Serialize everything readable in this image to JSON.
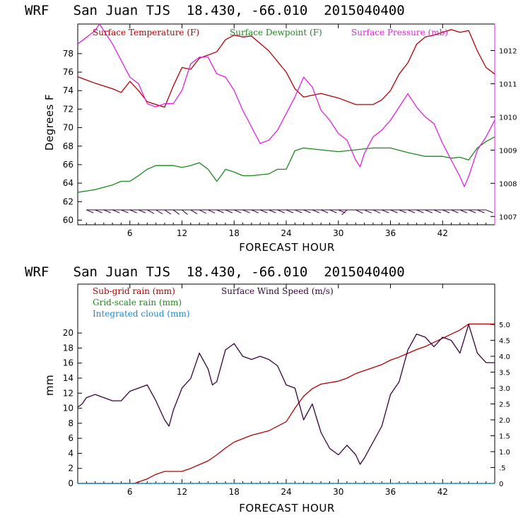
{
  "chart_data": [
    {
      "type": "line",
      "title": "WRF   San Juan TJS  18.430, -66.010  2015040400",
      "xlabel": "FORECAST HOUR",
      "ylabel": "Degrees F",
      "xlim": [
        0,
        48
      ],
      "ylim": [
        59.5,
        81.2
      ],
      "xticks": [
        6,
        12,
        18,
        24,
        30,
        36,
        42
      ],
      "yticks": [
        60,
        62,
        64,
        66,
        68,
        70,
        72,
        74,
        76,
        78
      ],
      "y2lim": [
        1006.75,
        1012.8
      ],
      "y2ticks": [
        1007,
        1008,
        1009,
        1010,
        1011,
        1012
      ],
      "legend_position": "top",
      "series": [
        {
          "name": "Surface Temperature (F)",
          "color": "#b40000",
          "axis": "left",
          "x": [
            0,
            2,
            4,
            5,
            6,
            7,
            8,
            9,
            10,
            11,
            12,
            13,
            14,
            16,
            17,
            18,
            19,
            20,
            22,
            24,
            25,
            26,
            27,
            28,
            30,
            32,
            33,
            34,
            35,
            36,
            37,
            38,
            39,
            40,
            41,
            42,
            43,
            44,
            45,
            46,
            47,
            48
          ],
          "values": [
            75.5,
            74.8,
            74.2,
            73.8,
            75.0,
            74.0,
            72.8,
            72.5,
            72.2,
            74.5,
            76.5,
            76.3,
            77.5,
            78.2,
            79.5,
            80.0,
            79.8,
            79.9,
            78.3,
            76.0,
            74.2,
            73.3,
            73.5,
            73.7,
            73.2,
            72.5,
            72.5,
            72.5,
            73.0,
            74.0,
            75.8,
            77.0,
            79.0,
            79.8,
            80.0,
            80.3,
            80.6,
            80.3,
            80.5,
            78.3,
            76.5,
            75.8
          ]
        },
        {
          "name": "Surface Dewpoint (F)",
          "color": "#1a8a1a",
          "axis": "left",
          "x": [
            0,
            2,
            4,
            5,
            6,
            7,
            8,
            9,
            10,
            11,
            12,
            13,
            14,
            15,
            16,
            16.5,
            17,
            18,
            19,
            20,
            22,
            23,
            24,
            25,
            26,
            28,
            30,
            32,
            34,
            36,
            38,
            40,
            42,
            43,
            44,
            45,
            46,
            47,
            48
          ],
          "values": [
            63.0,
            63.3,
            63.8,
            64.2,
            64.2,
            64.8,
            65.5,
            65.9,
            65.9,
            65.9,
            65.7,
            65.9,
            66.2,
            65.5,
            64.2,
            64.8,
            65.5,
            65.2,
            64.8,
            64.8,
            65.0,
            65.5,
            65.5,
            67.5,
            67.8,
            67.6,
            67.4,
            67.6,
            67.8,
            67.8,
            67.3,
            66.9,
            66.9,
            66.7,
            66.8,
            66.5,
            67.8,
            68.5,
            69.0
          ]
        },
        {
          "name": "Surface Pressure (mb)",
          "color": "#e020e0",
          "axis": "right",
          "x": [
            0,
            1,
            2,
            2.5,
            3,
            4,
            5,
            6,
            7,
            8,
            9,
            10,
            11,
            12,
            13,
            14,
            15,
            16,
            17,
            18,
            19,
            20,
            21,
            22,
            23,
            24,
            25,
            26,
            27,
            28,
            29,
            30,
            31,
            32,
            32.5,
            33,
            34,
            35,
            36,
            37,
            38,
            39,
            40,
            41,
            42,
            43,
            44,
            44.5,
            45,
            46,
            47,
            48
          ],
          "values": [
            1012.2,
            1012.4,
            1012.6,
            1012.8,
            1012.6,
            1012.2,
            1011.7,
            1011.2,
            1011.0,
            1010.4,
            1010.3,
            1010.4,
            1010.4,
            1010.8,
            1011.6,
            1011.8,
            1011.8,
            1011.3,
            1011.2,
            1010.8,
            1010.2,
            1009.7,
            1009.2,
            1009.3,
            1009.6,
            1010.1,
            1010.6,
            1011.2,
            1010.9,
            1010.2,
            1009.9,
            1009.5,
            1009.3,
            1008.7,
            1008.5,
            1008.9,
            1009.4,
            1009.6,
            1009.9,
            1010.3,
            1010.7,
            1010.3,
            1010.0,
            1009.8,
            1009.2,
            1008.7,
            1008.2,
            1007.9,
            1008.2,
            1009.0,
            1009.4,
            1009.9
          ]
        }
      ],
      "wind_barbs": {
        "level": 61.1,
        "color": "#3a0040",
        "hours": [
          1,
          2,
          3,
          4,
          5,
          6,
          7,
          8,
          9,
          10,
          11,
          12,
          13,
          14,
          15,
          16,
          17,
          18,
          19,
          20,
          21,
          22,
          23,
          24,
          25,
          26,
          27,
          28,
          29,
          30,
          31,
          32,
          33,
          34,
          35,
          36,
          37,
          38,
          39,
          40,
          41,
          42,
          43,
          44,
          45,
          46,
          47
        ],
        "direction_deg": [
          90,
          90,
          90,
          90,
          90,
          90,
          90,
          105,
          110,
          115,
          120,
          125,
          110,
          100,
          95,
          90,
          90,
          90,
          90,
          90,
          90,
          90,
          90,
          90,
          90,
          90,
          90,
          90,
          90,
          90,
          230,
          100,
          95,
          95,
          90,
          90,
          90,
          90,
          90,
          90,
          90,
          90,
          90,
          90,
          90,
          90,
          90
        ]
      }
    },
    {
      "type": "line",
      "title": "WRF   San Juan TJS  18.430, -66.010  2015040400",
      "xlabel": "FORECAST HOUR",
      "ylabel": "mm",
      "xlim": [
        0,
        48
      ],
      "ylim": [
        0,
        26.5
      ],
      "xticks": [
        6,
        12,
        18,
        24,
        30,
        36,
        42
      ],
      "yticks": [
        0,
        2,
        4,
        6,
        8,
        10,
        12,
        14,
        16,
        18,
        20
      ],
      "y2lim": [
        0,
        6.27
      ],
      "y2ticks": [
        0,
        0.5,
        1.0,
        1.5,
        2.0,
        2.5,
        3.0,
        3.5,
        4.0,
        4.5,
        5.0
      ],
      "y2tick_labels": [
        "0",
        ".5",
        "1.0",
        "1.5",
        "2.0",
        "2.5",
        "3.0",
        "3.5",
        "4.0",
        "4.5",
        "5.0"
      ],
      "legend_position": "top-left",
      "series": [
        {
          "name": "Sub-grid rain (mm)",
          "color": "#b40000",
          "axis": "left",
          "x": [
            0,
            6.5,
            7,
            8,
            9,
            10,
            11,
            12,
            13,
            14,
            15,
            16,
            17,
            18,
            20,
            22,
            24,
            25,
            26,
            27,
            28,
            30,
            31,
            32,
            33,
            34,
            35,
            36,
            37,
            38,
            39,
            40,
            42,
            44,
            45,
            46,
            47,
            48
          ],
          "values": [
            0,
            0,
            0.2,
            0.6,
            1.2,
            1.6,
            1.6,
            1.6,
            2.0,
            2.5,
            3.0,
            3.8,
            4.7,
            5.5,
            6.4,
            7.0,
            8.2,
            10.0,
            11.6,
            12.6,
            13.2,
            13.6,
            14.0,
            14.6,
            15.0,
            15.4,
            15.8,
            16.4,
            16.8,
            17.3,
            17.8,
            18.2,
            19.3,
            20.4,
            21.2,
            21.2,
            21.2,
            21.2
          ]
        },
        {
          "name": "Grid-scale rain (mm)",
          "color": "#1a8a1a",
          "axis": "left",
          "x": [
            0,
            48
          ],
          "values": [
            0,
            0
          ]
        },
        {
          "name": "Integrated cloud (mm)",
          "color": "#1a8ad0",
          "axis": "left",
          "x": [
            0,
            48
          ],
          "values": [
            0,
            0
          ]
        },
        {
          "name": "Surface Wind Speed (m/s)",
          "color": "#3a0040",
          "axis": "right",
          "x": [
            0,
            0.5,
            1,
            2,
            3,
            4,
            5,
            6,
            7,
            8,
            9,
            10,
            10.5,
            11,
            12,
            13,
            14,
            15,
            15.5,
            16,
            17,
            18,
            19,
            20,
            21,
            22,
            23,
            24,
            25,
            26,
            27,
            28,
            29,
            30,
            31,
            32,
            32.5,
            33,
            34,
            35,
            36,
            37,
            38,
            39,
            40,
            41,
            42,
            43,
            44,
            45,
            46,
            47,
            48
          ],
          "values": [
            2.4,
            2.5,
            2.7,
            2.8,
            2.7,
            2.6,
            2.6,
            2.9,
            3.0,
            3.1,
            2.6,
            2.0,
            1.8,
            2.3,
            3.0,
            3.3,
            4.1,
            3.6,
            3.1,
            3.2,
            4.2,
            4.4,
            4.0,
            3.9,
            4.0,
            3.9,
            3.7,
            3.1,
            3.0,
            2.0,
            2.5,
            1.6,
            1.1,
            0.9,
            1.2,
            0.9,
            0.6,
            0.8,
            1.3,
            1.8,
            2.8,
            3.2,
            4.2,
            4.7,
            4.6,
            4.3,
            4.6,
            4.5,
            4.1,
            5.0,
            4.1,
            3.8,
            3.8
          ]
        }
      ]
    }
  ]
}
